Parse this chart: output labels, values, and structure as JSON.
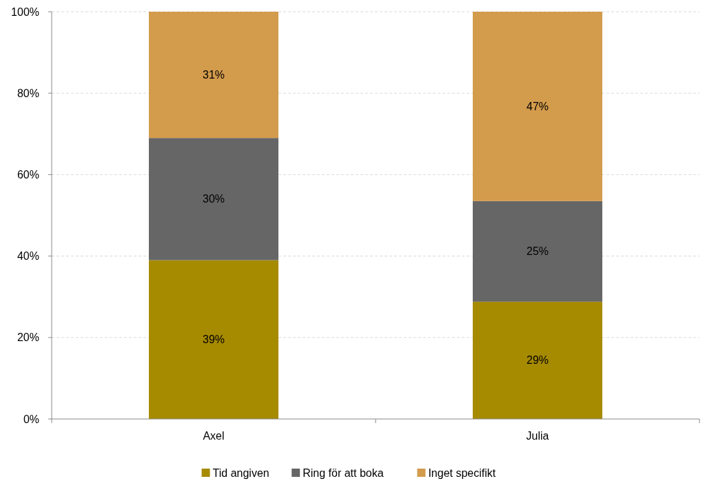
{
  "chart_data": {
    "type": "bar",
    "stacked": true,
    "categories": [
      "Axel",
      "Julia"
    ],
    "series": [
      {
        "name": "Tid angiven",
        "color": "#a68a00",
        "values": [
          39,
          28.8
        ],
        "value_labels": [
          "39%",
          "29%"
        ]
      },
      {
        "name": "Ring för att boka",
        "color": "#666666",
        "values": [
          30,
          24.7
        ],
        "value_labels": [
          "30%",
          "25%"
        ]
      },
      {
        "name": "Inget specifikt",
        "color": "#d39b4c",
        "values": [
          31,
          46.5
        ],
        "value_labels": [
          "31%",
          "47%"
        ]
      }
    ],
    "ylim": [
      0,
      100
    ],
    "yticks": [
      {
        "value": 0,
        "label": "0%"
      },
      {
        "value": 20,
        "label": "20%"
      },
      {
        "value": 40,
        "label": "40%"
      },
      {
        "value": 60,
        "label": "60%"
      },
      {
        "value": 80,
        "label": "80%"
      },
      {
        "value": 100,
        "label": "100%"
      }
    ],
    "grid": "y",
    "legend": "bottom"
  }
}
